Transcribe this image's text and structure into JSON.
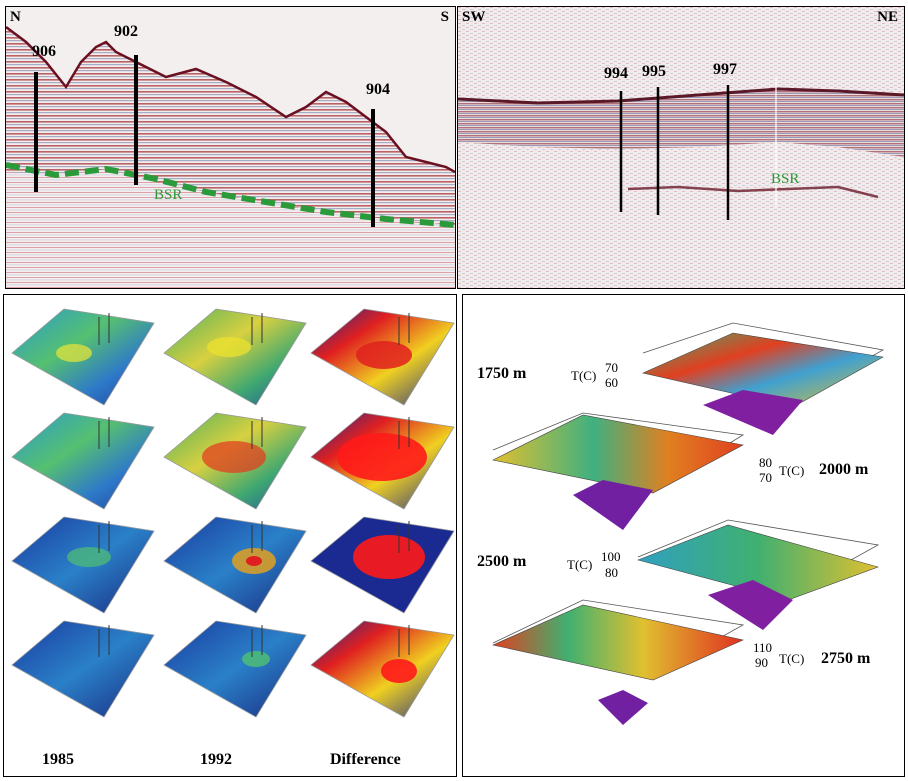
{
  "panel_a": {
    "left_corner": "N",
    "right_corner": "S",
    "wells": [
      "906",
      "902",
      "904"
    ],
    "bsr": "BSR",
    "colors": {
      "bsr_line": "#2a9a3a",
      "positive": "#8a1020",
      "negative": "#2b3b8a"
    }
  },
  "panel_b": {
    "left_corner": "SW",
    "right_corner": "NE",
    "wells": [
      "994",
      "995",
      "997"
    ],
    "bsr": "BSR"
  },
  "panel_c": {
    "years": [
      "1985",
      "1992",
      "Difference"
    ]
  },
  "panel_d": {
    "surfaces": [
      {
        "depth": "1750 m",
        "axis_label": "T(C)",
        "ticks": [
          "70",
          "60"
        ]
      },
      {
        "depth": "2000 m",
        "axis_label": "T(C)",
        "ticks": [
          "80",
          "70"
        ]
      },
      {
        "depth": "2500 m",
        "axis_label": "T(C)",
        "ticks": [
          "100",
          "80"
        ]
      },
      {
        "depth": "2750 m",
        "axis_label": "T(C)",
        "ticks": [
          "110",
          "90"
        ]
      }
    ]
  }
}
